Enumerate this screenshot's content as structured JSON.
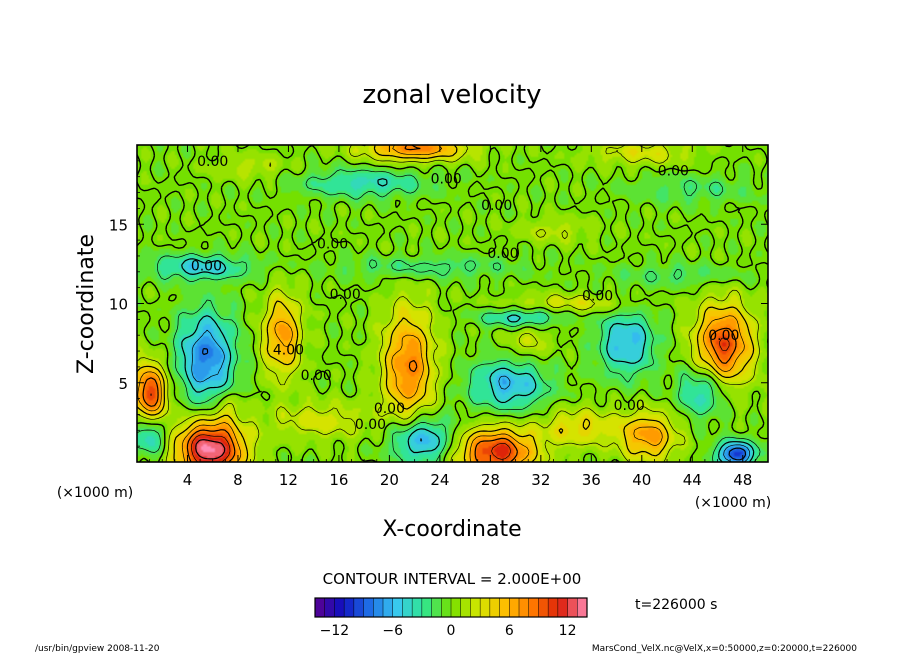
{
  "chart_data": {
    "type": "heatmap",
    "title": "zonal velocity",
    "xlabel": "X-coordinate",
    "ylabel": "Z-coordinate",
    "x_unit": "(×1000 m)",
    "y_unit": "(×1000 m)",
    "xlim": [
      0,
      50
    ],
    "ylim": [
      0,
      20
    ],
    "x_ticks": [
      4,
      8,
      12,
      16,
      20,
      24,
      28,
      32,
      36,
      40,
      44,
      48
    ],
    "y_ticks": [
      5,
      10,
      15
    ],
    "contour_interval_text": "CONTOUR INTERVAL = 2.000E+00",
    "time_label": "t=226000 s",
    "colorbar": {
      "min": -14,
      "max": 14,
      "ticks": [
        -12,
        -6,
        0,
        6,
        12
      ],
      "colors": [
        "#5a0090",
        "#1010c0",
        "#1e6ee6",
        "#38c8f0",
        "#30e690",
        "#74e000",
        "#d2e600",
        "#ffbe00",
        "#ff7800",
        "#dc1e0a",
        "#ff8cb4"
      ]
    },
    "contour_labels": [
      {
        "text": "0.00",
        "x": 6.0,
        "z": 19.0
      },
      {
        "text": "0.00",
        "x": 24.5,
        "z": 17.9
      },
      {
        "text": "0.00",
        "x": 42.5,
        "z": 18.4
      },
      {
        "text": "0.00",
        "x": 28.5,
        "z": 16.2
      },
      {
        "text": "0.00",
        "x": 15.5,
        "z": 13.8
      },
      {
        "text": "0.00",
        "x": 29.0,
        "z": 13.2
      },
      {
        "text": "0.00",
        "x": 5.5,
        "z": 12.4
      },
      {
        "text": "0.00",
        "x": 16.5,
        "z": 10.6
      },
      {
        "text": "0.00",
        "x": 36.5,
        "z": 10.5
      },
      {
        "text": "0.00",
        "x": 46.5,
        "z": 8.0
      },
      {
        "text": "4.00",
        "x": 12.0,
        "z": 7.1
      },
      {
        "text": "0.00",
        "x": 14.2,
        "z": 5.5
      },
      {
        "text": "0.00",
        "x": 20.0,
        "z": 3.4
      },
      {
        "text": "0.00",
        "x": 39.0,
        "z": 3.6
      },
      {
        "text": "0.00",
        "x": 18.5,
        "z": 2.4
      }
    ],
    "features": [
      {
        "x": 5.8,
        "z": 0.8,
        "sx": 2.6,
        "sz": 1.8,
        "v": 14
      },
      {
        "x": 28.5,
        "z": 0.6,
        "sx": 3.0,
        "sz": 1.5,
        "v": 11
      },
      {
        "x": 40.5,
        "z": 1.6,
        "sx": 2.2,
        "sz": 1.5,
        "v": 7
      },
      {
        "x": 1.0,
        "z": 4.4,
        "sx": 1.4,
        "sz": 1.8,
        "v": 10
      },
      {
        "x": 5.5,
        "z": 6.6,
        "sx": 2.2,
        "sz": 2.8,
        "v": -8
      },
      {
        "x": 11.5,
        "z": 8.0,
        "sx": 1.5,
        "sz": 2.5,
        "v": 7
      },
      {
        "x": 21.5,
        "z": 6.0,
        "sx": 2.0,
        "sz": 3.6,
        "v": 8
      },
      {
        "x": 22.5,
        "z": 1.4,
        "sx": 2.4,
        "sz": 1.5,
        "v": -7
      },
      {
        "x": 29.5,
        "z": 4.9,
        "sx": 3.0,
        "sz": 1.6,
        "v": -6
      },
      {
        "x": 38.8,
        "z": 7.5,
        "sx": 2.2,
        "sz": 2.0,
        "v": -6
      },
      {
        "x": 44.8,
        "z": 4.5,
        "sx": 1.9,
        "sz": 1.6,
        "v": -5
      },
      {
        "x": 46.5,
        "z": 7.4,
        "sx": 2.2,
        "sz": 2.5,
        "v": 10
      },
      {
        "x": 14.5,
        "z": 2.6,
        "sx": 4.0,
        "sz": 1.2,
        "v": 3
      },
      {
        "x": 35.0,
        "z": 2.2,
        "sx": 3.0,
        "sz": 1.2,
        "v": 4
      },
      {
        "x": 34.5,
        "z": 10.0,
        "sx": 5.0,
        "sz": 0.6,
        "v": 3
      },
      {
        "x": 30.5,
        "z": 9.1,
        "sx": 3.0,
        "sz": 0.6,
        "v": -5
      },
      {
        "x": 5.0,
        "z": 12.3,
        "sx": 3.8,
        "sz": 0.8,
        "v": -5
      },
      {
        "x": 23.0,
        "z": 12.3,
        "sx": 7.0,
        "sz": 0.7,
        "v": -2.5
      },
      {
        "x": 43.0,
        "z": 11.8,
        "sx": 5.0,
        "sz": 0.7,
        "v": -2
      },
      {
        "x": 18.0,
        "z": 17.6,
        "sx": 5.0,
        "sz": 0.9,
        "v": -4
      },
      {
        "x": 22.0,
        "z": 19.8,
        "sx": 4.0,
        "sz": 0.8,
        "v": 8
      },
      {
        "x": 9.0,
        "z": 18.6,
        "sx": 3.0,
        "sz": 0.8,
        "v": 2
      },
      {
        "x": 44.0,
        "z": 17.2,
        "sx": 5.0,
        "sz": 0.9,
        "v": -2
      },
      {
        "x": 33.0,
        "z": 14.6,
        "sx": 3.0,
        "sz": 0.8,
        "v": 2
      },
      {
        "x": 40.0,
        "z": 19.5,
        "sx": 4.0,
        "sz": 0.8,
        "v": 3
      },
      {
        "x": 1.0,
        "z": 1.6,
        "sx": 1.4,
        "sz": 1.2,
        "v": -5
      },
      {
        "x": 47.5,
        "z": 0.5,
        "sx": 1.5,
        "sz": 0.8,
        "v": -10
      },
      {
        "x": 7.2,
        "z": 3.5,
        "sx": 1.0,
        "sz": 1.0,
        "v": 2.5
      },
      {
        "x": 31.0,
        "z": 7.6,
        "sx": 1.8,
        "sz": 1.4,
        "v": 2.5
      }
    ]
  },
  "footer": {
    "left": "/usr/bin/gpview   2008-11-20",
    "right": "MarsCond_VelX.nc@VelX,x=0:50000,z=0:20000,t=226000"
  }
}
